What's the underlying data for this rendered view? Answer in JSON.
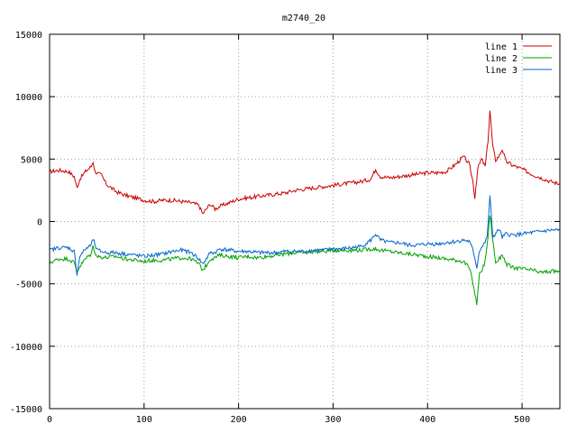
{
  "chart_data": {
    "type": "line",
    "title": "m2740_20",
    "xlabel": "",
    "ylabel": "",
    "xlim": [
      0,
      540
    ],
    "ylim": [
      -15000,
      15000
    ],
    "xticks": [
      0,
      100,
      200,
      300,
      400,
      500
    ],
    "yticks": [
      -15000,
      -10000,
      -5000,
      0,
      5000,
      10000,
      15000
    ],
    "xtick_labels": [
      "0",
      "100",
      "200",
      "300",
      "400",
      "500"
    ],
    "ytick_labels": [
      "-15000",
      "-10000",
      "-5000",
      "0",
      "5000",
      "10000",
      "15000"
    ],
    "grid": true,
    "legend_position": "top-right",
    "series": [
      {
        "name": "line 1",
        "color": "#cc0000",
        "points": [
          [
            0,
            4000
          ],
          [
            10,
            4100
          ],
          [
            20,
            4000
          ],
          [
            26,
            3600
          ],
          [
            29,
            2700
          ],
          [
            32,
            3400
          ],
          [
            38,
            4000
          ],
          [
            44,
            4400
          ],
          [
            46,
            4800
          ],
          [
            48,
            4000
          ],
          [
            55,
            3700
          ],
          [
            60,
            3000
          ],
          [
            70,
            2400
          ],
          [
            80,
            2100
          ],
          [
            90,
            1900
          ],
          [
            100,
            1700
          ],
          [
            110,
            1600
          ],
          [
            120,
            1700
          ],
          [
            130,
            1700
          ],
          [
            140,
            1600
          ],
          [
            150,
            1500
          ],
          [
            158,
            1300
          ],
          [
            162,
            600
          ],
          [
            166,
            1000
          ],
          [
            170,
            1400
          ],
          [
            175,
            1000
          ],
          [
            180,
            1200
          ],
          [
            190,
            1500
          ],
          [
            200,
            1800
          ],
          [
            210,
            1900
          ],
          [
            220,
            2000
          ],
          [
            230,
            2100
          ],
          [
            240,
            2200
          ],
          [
            250,
            2300
          ],
          [
            260,
            2500
          ],
          [
            270,
            2600
          ],
          [
            280,
            2700
          ],
          [
            290,
            2800
          ],
          [
            300,
            2900
          ],
          [
            310,
            3000
          ],
          [
            320,
            3100
          ],
          [
            330,
            3200
          ],
          [
            340,
            3400
          ],
          [
            345,
            4200
          ],
          [
            350,
            3600
          ],
          [
            360,
            3500
          ],
          [
            370,
            3600
          ],
          [
            380,
            3700
          ],
          [
            390,
            3800
          ],
          [
            400,
            3900
          ],
          [
            410,
            3900
          ],
          [
            420,
            4000
          ],
          [
            430,
            4600
          ],
          [
            438,
            5200
          ],
          [
            444,
            4600
          ],
          [
            448,
            3200
          ],
          [
            450,
            1900
          ],
          [
            453,
            4200
          ],
          [
            457,
            5000
          ],
          [
            461,
            4400
          ],
          [
            464,
            6500
          ],
          [
            466,
            8900
          ],
          [
            469,
            6000
          ],
          [
            472,
            4900
          ],
          [
            476,
            5300
          ],
          [
            479,
            5800
          ],
          [
            483,
            4800
          ],
          [
            490,
            4500
          ],
          [
            500,
            4200
          ],
          [
            510,
            3800
          ],
          [
            520,
            3500
          ],
          [
            530,
            3200
          ],
          [
            540,
            3000
          ]
        ]
      },
      {
        "name": "line 2",
        "color": "#00a000",
        "points": [
          [
            0,
            -3300
          ],
          [
            10,
            -3000
          ],
          [
            20,
            -3000
          ],
          [
            26,
            -3300
          ],
          [
            29,
            -4000
          ],
          [
            32,
            -3600
          ],
          [
            38,
            -3000
          ],
          [
            44,
            -2600
          ],
          [
            46,
            -2000
          ],
          [
            50,
            -2800
          ],
          [
            60,
            -2900
          ],
          [
            70,
            -2800
          ],
          [
            80,
            -3000
          ],
          [
            90,
            -3100
          ],
          [
            100,
            -3200
          ],
          [
            110,
            -3100
          ],
          [
            120,
            -3100
          ],
          [
            130,
            -3000
          ],
          [
            140,
            -2900
          ],
          [
            150,
            -3000
          ],
          [
            158,
            -3400
          ],
          [
            162,
            -3900
          ],
          [
            166,
            -3500
          ],
          [
            170,
            -3000
          ],
          [
            175,
            -2900
          ],
          [
            180,
            -2700
          ],
          [
            190,
            -2800
          ],
          [
            200,
            -2900
          ],
          [
            210,
            -2800
          ],
          [
            220,
            -2900
          ],
          [
            230,
            -2800
          ],
          [
            240,
            -2700
          ],
          [
            250,
            -2600
          ],
          [
            260,
            -2500
          ],
          [
            270,
            -2500
          ],
          [
            280,
            -2400
          ],
          [
            290,
            -2400
          ],
          [
            300,
            -2300
          ],
          [
            310,
            -2300
          ],
          [
            320,
            -2300
          ],
          [
            330,
            -2300
          ],
          [
            340,
            -2200
          ],
          [
            345,
            -2200
          ],
          [
            350,
            -2300
          ],
          [
            360,
            -2400
          ],
          [
            370,
            -2500
          ],
          [
            380,
            -2600
          ],
          [
            390,
            -2700
          ],
          [
            400,
            -2800
          ],
          [
            410,
            -2900
          ],
          [
            420,
            -3000
          ],
          [
            430,
            -3100
          ],
          [
            438,
            -3200
          ],
          [
            444,
            -3700
          ],
          [
            448,
            -4900
          ],
          [
            450,
            -5800
          ],
          [
            452,
            -6600
          ],
          [
            455,
            -4200
          ],
          [
            460,
            -3500
          ],
          [
            463,
            -2000
          ],
          [
            466,
            600
          ],
          [
            469,
            -1500
          ],
          [
            472,
            -3300
          ],
          [
            476,
            -3000
          ],
          [
            479,
            -2600
          ],
          [
            483,
            -3400
          ],
          [
            490,
            -3700
          ],
          [
            500,
            -3800
          ],
          [
            510,
            -3900
          ],
          [
            520,
            -4100
          ],
          [
            530,
            -4000
          ],
          [
            540,
            -4000
          ]
        ]
      },
      {
        "name": "line 3",
        "color": "#0066cc",
        "points": [
          [
            0,
            -2300
          ],
          [
            10,
            -2100
          ],
          [
            20,
            -2100
          ],
          [
            26,
            -2400
          ],
          [
            29,
            -4200
          ],
          [
            32,
            -2800
          ],
          [
            38,
            -2200
          ],
          [
            44,
            -1900
          ],
          [
            46,
            -1400
          ],
          [
            50,
            -2300
          ],
          [
            60,
            -2500
          ],
          [
            70,
            -2500
          ],
          [
            80,
            -2600
          ],
          [
            90,
            -2700
          ],
          [
            100,
            -2800
          ],
          [
            110,
            -2700
          ],
          [
            120,
            -2600
          ],
          [
            130,
            -2400
          ],
          [
            140,
            -2300
          ],
          [
            150,
            -2500
          ],
          [
            158,
            -3000
          ],
          [
            162,
            -3400
          ],
          [
            166,
            -3000
          ],
          [
            170,
            -2500
          ],
          [
            175,
            -2500
          ],
          [
            180,
            -2200
          ],
          [
            190,
            -2300
          ],
          [
            200,
            -2400
          ],
          [
            210,
            -2400
          ],
          [
            220,
            -2500
          ],
          [
            230,
            -2500
          ],
          [
            240,
            -2500
          ],
          [
            250,
            -2400
          ],
          [
            260,
            -2400
          ],
          [
            270,
            -2400
          ],
          [
            280,
            -2300
          ],
          [
            290,
            -2300
          ],
          [
            300,
            -2200
          ],
          [
            310,
            -2200
          ],
          [
            320,
            -2100
          ],
          [
            330,
            -2000
          ],
          [
            340,
            -1500
          ],
          [
            345,
            -1000
          ],
          [
            350,
            -1500
          ],
          [
            360,
            -1700
          ],
          [
            370,
            -1700
          ],
          [
            380,
            -1900
          ],
          [
            390,
            -1900
          ],
          [
            400,
            -1800
          ],
          [
            410,
            -1800
          ],
          [
            420,
            -1700
          ],
          [
            430,
            -1600
          ],
          [
            438,
            -1500
          ],
          [
            444,
            -1600
          ],
          [
            448,
            -2300
          ],
          [
            450,
            -2900
          ],
          [
            452,
            -3700
          ],
          [
            455,
            -2300
          ],
          [
            460,
            -1800
          ],
          [
            463,
            -1300
          ],
          [
            466,
            2000
          ],
          [
            469,
            -1200
          ],
          [
            472,
            -1000
          ],
          [
            476,
            -600
          ],
          [
            479,
            -1300
          ],
          [
            483,
            -1000
          ],
          [
            490,
            -1100
          ],
          [
            500,
            -1000
          ],
          [
            510,
            -900
          ],
          [
            520,
            -800
          ],
          [
            530,
            -700
          ],
          [
            540,
            -700
          ]
        ]
      }
    ]
  }
}
